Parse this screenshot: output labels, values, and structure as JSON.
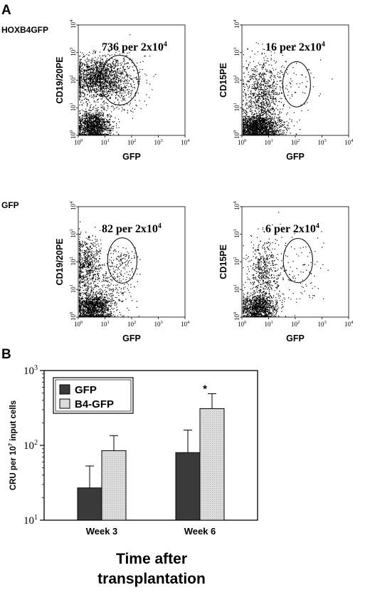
{
  "panel_a": {
    "letter": "A",
    "rows": [
      {
        "label": "HOXB4GFP"
      },
      {
        "label": "GFP"
      }
    ],
    "plots": [
      {
        "id": "hoxb4-cd19",
        "row": 0,
        "col": 0,
        "ylabel": "CD19/20PE",
        "xlabel": "GFP",
        "count_main": "736 per 2x10",
        "count_exp": "4",
        "dots": 3200,
        "gate": {
          "cx_log": 1.55,
          "cy_log": 2.0,
          "rx_dec": 0.72,
          "ry_dec": 0.9
        }
      },
      {
        "id": "hoxb4-cd15",
        "row": 0,
        "col": 1,
        "ylabel": "CD15PE",
        "xlabel": "GFP",
        "count_main": "16 per 2x10",
        "count_exp": "4",
        "dots": 2600,
        "gate": {
          "cx_log": 2.05,
          "cy_log": 1.85,
          "rx_dec": 0.52,
          "ry_dec": 0.82
        }
      },
      {
        "id": "gfp-cd19",
        "row": 1,
        "col": 0,
        "ylabel": "CD19/20PE",
        "xlabel": "GFP",
        "count_main": "82 per 2x10",
        "count_exp": "4",
        "dots": 2300,
        "gate": {
          "cx_log": 1.65,
          "cy_log": 2.05,
          "rx_dec": 0.55,
          "ry_dec": 0.82
        }
      },
      {
        "id": "gfp-cd15",
        "row": 1,
        "col": 1,
        "ylabel": "CD15PE",
        "xlabel": "GFP",
        "count_main": "6 per 2x10",
        "count_exp": "4",
        "dots": 1700,
        "gate": {
          "cx_log": 2.1,
          "cy_log": 2.05,
          "rx_dec": 0.55,
          "ry_dec": 0.8
        }
      }
    ],
    "tick_base": "10",
    "tick_exps": [
      "0",
      "1",
      "2",
      "3",
      "4"
    ]
  },
  "chart_data": {
    "type": "bar",
    "panel_letter": "B",
    "categories": [
      "Week 3",
      "Week 6"
    ],
    "series": [
      {
        "name": "GFP",
        "color": "#3a3a3a",
        "values": [
          27,
          80
        ],
        "error_upper": [
          53,
          160
        ]
      },
      {
        "name": "B4-GFP",
        "color": "#dcdcdc",
        "values": [
          85,
          310
        ],
        "error_upper": [
          135,
          490
        ]
      }
    ],
    "significance": [
      {
        "category": "Week 6",
        "series": "B4-GFP",
        "mark": "*"
      }
    ],
    "yscale": "log",
    "ylim": [
      10,
      1000
    ],
    "yticks": [
      {
        "base": "10",
        "exp": "1"
      },
      {
        "base": "10",
        "exp": "2"
      },
      {
        "base": "10",
        "exp": "3"
      }
    ],
    "ylabel": {
      "before": "CRU per 10",
      "sup": "7",
      "after": " input cells"
    },
    "xlabel_lines": [
      "Time after",
      "transplantation"
    ],
    "legend_placement": "top-left"
  }
}
